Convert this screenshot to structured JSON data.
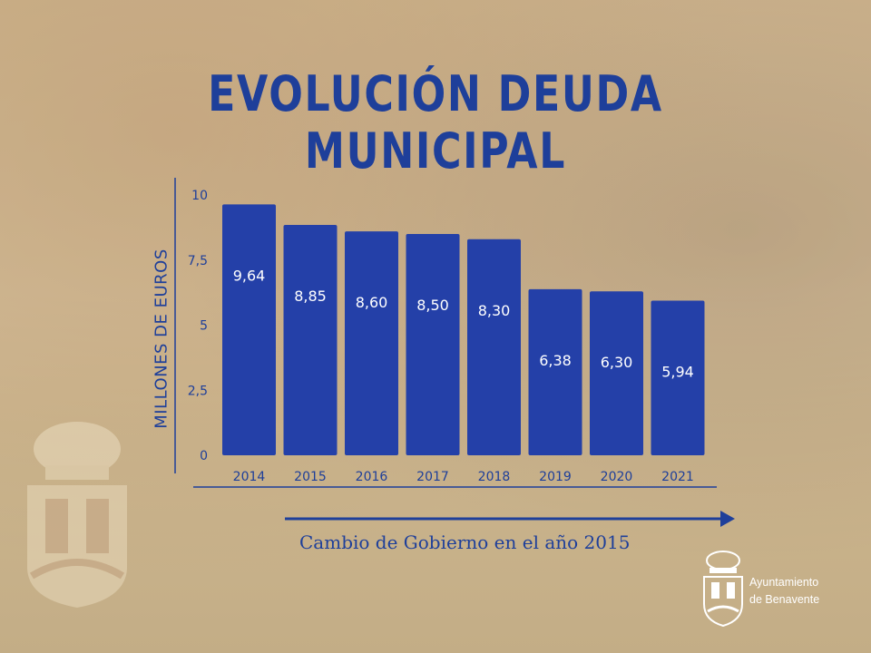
{
  "title": "EVOLUCIÓN DEUDA MUNICIPAL",
  "footnote": "Cambio de Gobierno en el año 2015",
  "organization": {
    "line1": "Ayuntamiento",
    "line2": "de Benavente"
  },
  "icons": {
    "coat_of_arms": "coat-of-arms-icon"
  },
  "colors": {
    "bar": "#2440a8",
    "text": "#1e3f9a",
    "value_label": "#ffffff"
  },
  "chart_data": {
    "type": "bar",
    "title": "EVOLUCIÓN DEUDA MUNICIPAL",
    "xlabel": "",
    "ylabel": "MILLONES DE EUROS",
    "categories": [
      "2014",
      "2015",
      "2016",
      "2017",
      "2018",
      "2019",
      "2020",
      "2021"
    ],
    "values": [
      9.64,
      8.85,
      8.6,
      8.5,
      8.3,
      6.38,
      6.3,
      5.94
    ],
    "value_labels": [
      "9,64",
      "8,85",
      "8,60",
      "8,50",
      "8,30",
      "6,38",
      "6,30",
      "5,94"
    ],
    "yticks": [
      0,
      2.5,
      5,
      7.5,
      10
    ],
    "ytick_labels": [
      "0",
      "2,5",
      "5",
      "7,5",
      "10"
    ],
    "ylim": [
      0,
      10
    ],
    "grid": false,
    "legend": "none"
  }
}
